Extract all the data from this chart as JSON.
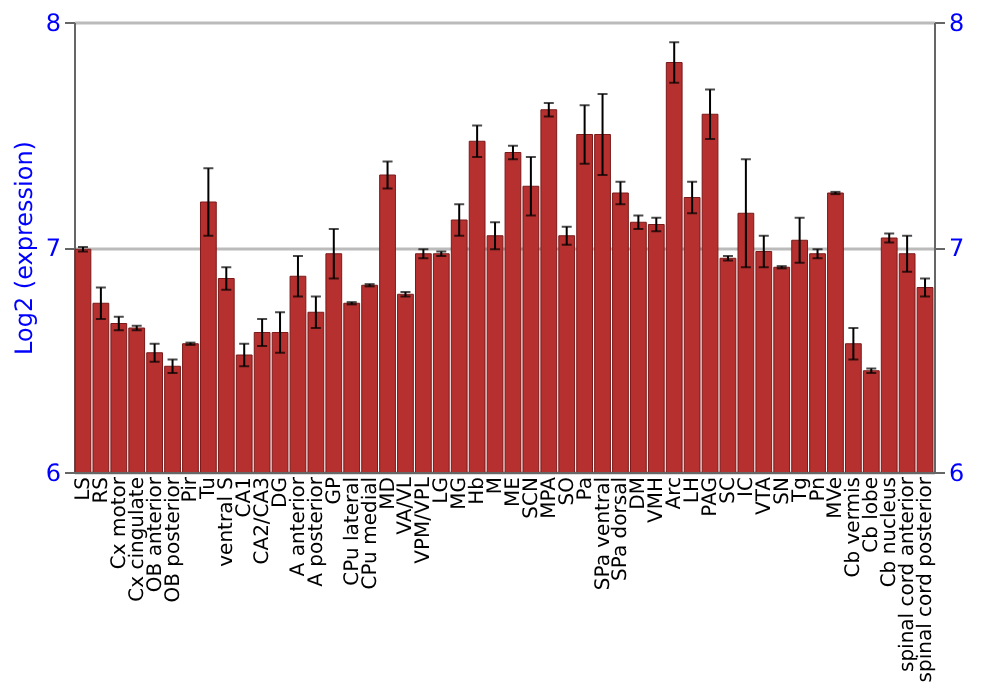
{
  "chart_data": {
    "type": "bar",
    "ylabel": "Log2 (expression)",
    "categories": [
      "LS",
      "RS",
      "Cx motor",
      "Cx cingulate",
      "OB anterior",
      "OB posterior",
      "Pir",
      "Tu",
      "ventral S",
      "CA1",
      "CA2/CA3",
      "DG",
      "A anterior",
      "A posterior",
      "GP",
      "CPu lateral",
      "CPu medial",
      "MD",
      "VA/VL",
      "VPM/VPL",
      "LG",
      "MG",
      "Hb",
      "M",
      "ME",
      "SCN",
      "MPA",
      "SO",
      "Pa",
      "SPa ventral",
      "SPa dorsal",
      "DM",
      "VMH",
      "Arc",
      "LH",
      "PAG",
      "SC",
      "IC",
      "VTA",
      "SN",
      "Tg",
      "Pn",
      "MVe",
      "Cb vermis",
      "Cb lobe",
      "Cb nucleus",
      "spinal cord anterior",
      "spinal cord posterior"
    ],
    "values": [
      6.99,
      6.75,
      6.66,
      6.64,
      6.53,
      6.47,
      6.57,
      7.2,
      6.86,
      6.52,
      6.62,
      6.62,
      6.87,
      6.71,
      6.97,
      6.75,
      6.83,
      7.32,
      6.79,
      6.97,
      6.97,
      7.12,
      7.47,
      7.05,
      7.42,
      7.27,
      7.61,
      7.05,
      7.5,
      7.5,
      7.24,
      7.11,
      7.1,
      7.82,
      7.22,
      7.59,
      6.95,
      7.15,
      6.98,
      6.91,
      7.03,
      6.97,
      7.24,
      6.57,
      6.45,
      7.04,
      6.97,
      6.82
    ],
    "errors": [
      0.01,
      0.07,
      0.03,
      0.01,
      0.04,
      0.03,
      0.005,
      0.15,
      0.05,
      0.05,
      0.06,
      0.09,
      0.09,
      0.07,
      0.11,
      0.005,
      0.005,
      0.06,
      0.01,
      0.02,
      0.01,
      0.07,
      0.07,
      0.06,
      0.03,
      0.13,
      0.03,
      0.04,
      0.13,
      0.18,
      0.05,
      0.03,
      0.03,
      0.09,
      0.07,
      0.11,
      0.01,
      0.24,
      0.07,
      0.005,
      0.1,
      0.02,
      0.005,
      0.07,
      0.01,
      0.02,
      0.08,
      0.04
    ],
    "color": "#b5302f",
    "ylim": [
      6,
      8
    ],
    "yticks": [
      6,
      7,
      8
    ],
    "y2lim": [
      6,
      8
    ],
    "y2ticks": [
      6,
      7,
      8
    ],
    "grid": "y"
  }
}
